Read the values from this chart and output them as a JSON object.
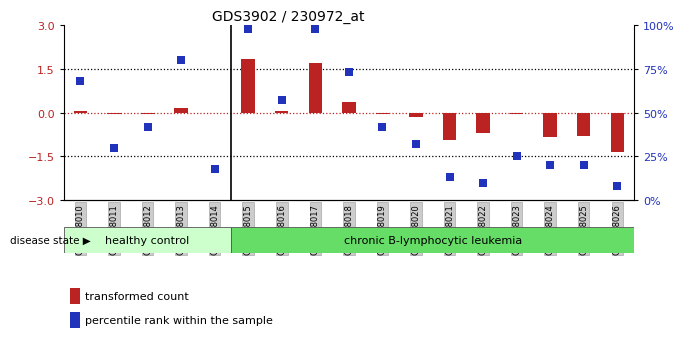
{
  "title": "GDS3902 / 230972_at",
  "samples": [
    "GSM658010",
    "GSM658011",
    "GSM658012",
    "GSM658013",
    "GSM658014",
    "GSM658015",
    "GSM658016",
    "GSM658017",
    "GSM658018",
    "GSM658019",
    "GSM658020",
    "GSM658021",
    "GSM658022",
    "GSM658023",
    "GSM658024",
    "GSM658025",
    "GSM658026"
  ],
  "transformed_count": [
    0.05,
    -0.05,
    -0.05,
    0.15,
    0.0,
    1.85,
    0.05,
    1.7,
    0.35,
    -0.05,
    -0.15,
    -0.95,
    -0.7,
    -0.05,
    -0.85,
    -0.8,
    -1.35
  ],
  "percentile_rank": [
    68,
    30,
    42,
    80,
    18,
    98,
    57,
    98,
    73,
    42,
    32,
    13,
    10,
    25,
    20,
    20,
    8
  ],
  "healthy_control_count": 5,
  "ylim": [
    -3,
    3
  ],
  "right_ylim": [
    0,
    100
  ],
  "right_yticks": [
    0,
    25,
    50,
    75,
    100
  ],
  "right_yticklabels": [
    "0%",
    "25%",
    "50%",
    "75%",
    "100%"
  ],
  "left_yticks": [
    -3,
    -1.5,
    0,
    1.5,
    3
  ],
  "dotted_lines_black": [
    -1.5,
    1.5
  ],
  "dotted_line_red": 0,
  "bar_color": "#BB2222",
  "dot_color": "#2233BB",
  "healthy_bg": "#CCFFCC",
  "leukemia_bg": "#66DD66",
  "label_bg": "#CCCCCC",
  "healthy_label": "healthy control",
  "leukemia_label": "chronic B-lymphocytic leukemia",
  "legend_bar_label": "transformed count",
  "legend_dot_label": "percentile rank within the sample",
  "disease_state_label": "disease state"
}
